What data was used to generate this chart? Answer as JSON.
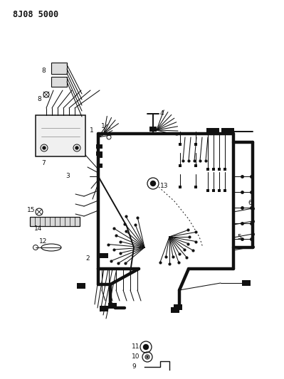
{
  "title": "8J08 5000",
  "bg_color": "#ffffff",
  "line_color": "#111111",
  "title_fontsize": 8.5,
  "title_fontweight": "bold",
  "lw_thick": 3.2,
  "lw_med": 1.4,
  "lw_thin": 0.75
}
